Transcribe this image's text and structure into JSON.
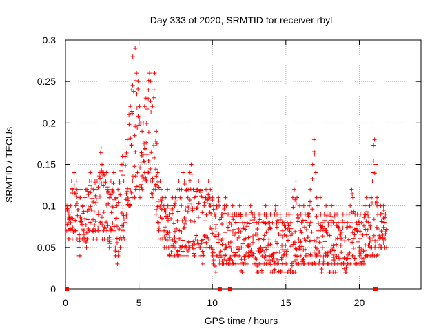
{
  "chart_data": {
    "type": "scatter",
    "title": "Day 333 of 2020, SRMTID for receiver rbyl",
    "xlabel": "GPS time / hours",
    "ylabel": "SRMTID / TECUs",
    "xlim": [
      0,
      24.2
    ],
    "ylim": [
      0,
      0.3
    ],
    "x_ticks": [
      0,
      5,
      10,
      15,
      20
    ],
    "x_tick_labels": [
      "0",
      "5",
      "10",
      "15",
      "20"
    ],
    "y_ticks": [
      0,
      0.05,
      0.1,
      0.15,
      0.2,
      0.25,
      0.3
    ],
    "y_tick_labels": [
      "0",
      "0.05",
      "0.1",
      "0.15",
      "0.2",
      "0.25",
      "0.3"
    ],
    "grid": true,
    "marker": "plus",
    "marker_color": "#ff0000",
    "series": [
      {
        "name": "SRMTID",
        "sample_interval_hours": 0.1,
        "x_start": 0.1,
        "min_values": [
          0.07,
          0.06,
          0.07,
          0.08,
          0.06,
          0.07,
          0.07,
          0.06,
          0.04,
          0.04,
          0.06,
          0.07,
          0.06,
          0.05,
          0.06,
          0.07,
          0.08,
          0.07,
          0.06,
          0.07,
          0.06,
          0.07,
          0.07,
          0.08,
          0.06,
          0.07,
          0.06,
          0.07,
          0.06,
          0.05,
          0.07,
          0.06,
          0.07,
          0.04,
          0.03,
          0.04,
          0.05,
          0.06,
          0.07,
          0.06,
          0.08,
          0.09,
          0.1,
          0.1,
          0.11,
          0.13,
          0.11,
          0.12,
          0.14,
          0.12,
          0.11,
          0.12,
          0.13,
          0.14,
          0.13,
          0.14,
          0.14,
          0.13,
          0.11,
          0.12,
          0.12,
          0.09,
          0.08,
          0.07,
          0.06,
          0.06,
          0.05,
          0.06,
          0.05,
          0.05,
          0.04,
          0.04,
          0.05,
          0.04,
          0.05,
          0.04,
          0.04,
          0.05,
          0.05,
          0.04,
          0.05,
          0.05,
          0.04,
          0.05,
          0.05,
          0.05,
          0.04,
          0.04,
          0.06,
          0.05,
          0.05,
          0.04,
          0.03,
          0.04,
          0.05,
          0.05,
          0.06,
          0.05,
          0.05,
          0.04,
          0.03,
          0.02,
          0.04,
          0.04,
          0.03,
          0.04,
          0.03,
          0.03,
          0.04,
          0.03,
          0.03,
          0.03,
          0.04,
          0.03,
          0.04,
          0.03,
          0.04,
          0.04,
          0.03,
          0.02,
          0.03,
          0.03,
          0.04,
          0.03,
          0.04,
          0.04,
          0.04,
          0.03,
          0.03,
          0.02,
          0.02,
          0.03,
          0.03,
          0.02,
          0.03,
          0.04,
          0.03,
          0.03,
          0.03,
          0.02,
          0.02,
          0.02,
          0.03,
          0.03,
          0.02,
          0.02,
          0.02,
          0.03,
          0.02,
          0.03,
          0.02,
          0.02,
          0.02,
          0.02,
          0.02,
          0.02,
          0.03,
          0.03,
          0.03,
          0.04,
          0.03,
          0.03,
          0.03,
          0.04,
          0.03,
          0.03,
          0.04,
          0.03,
          0.03,
          0.03,
          0.04,
          0.04,
          0.03,
          0.02,
          0.03,
          0.03,
          0.04,
          0.03,
          0.03,
          0.02,
          0.03,
          0.02,
          0.03,
          0.02,
          0.03,
          0.03,
          0.03,
          0.03,
          0.03,
          0.02,
          0.02,
          0.03,
          0.03,
          0.03,
          0.04,
          0.04,
          0.03,
          0.03,
          0.03,
          0.04,
          0.03,
          0.03,
          0.03,
          0.04,
          0.04,
          0.04,
          0.04,
          0.05,
          0.04,
          0.04,
          0.05,
          0.04,
          0.05,
          0.05,
          0.05,
          0.06,
          0.05,
          0.06,
          0.05
        ],
        "max_values": [
          0.1,
          0.09,
          0.1,
          0.13,
          0.12,
          0.14,
          0.13,
          0.12,
          0.11,
          0.11,
          0.12,
          0.1,
          0.11,
          0.12,
          0.12,
          0.13,
          0.14,
          0.13,
          0.12,
          0.13,
          0.12,
          0.13,
          0.14,
          0.17,
          0.15,
          0.14,
          0.13,
          0.14,
          0.12,
          0.11,
          0.13,
          0.12,
          0.14,
          0.11,
          0.1,
          0.12,
          0.13,
          0.15,
          0.16,
          0.13,
          0.16,
          0.18,
          0.21,
          0.22,
          0.24,
          0.28,
          0.29,
          0.26,
          0.25,
          0.22,
          0.2,
          0.19,
          0.2,
          0.22,
          0.23,
          0.24,
          0.26,
          0.25,
          0.22,
          0.24,
          0.26,
          0.19,
          0.14,
          0.13,
          0.12,
          0.11,
          0.1,
          0.11,
          0.12,
          0.1,
          0.09,
          0.1,
          0.11,
          0.1,
          0.11,
          0.12,
          0.13,
          0.12,
          0.12,
          0.14,
          0.13,
          0.12,
          0.11,
          0.12,
          0.14,
          0.15,
          0.12,
          0.11,
          0.12,
          0.12,
          0.13,
          0.12,
          0.11,
          0.1,
          0.11,
          0.12,
          0.13,
          0.11,
          0.12,
          0.11,
          0.1,
          0.09,
          0.1,
          0.11,
          0.1,
          0.09,
          0.09,
          0.1,
          0.11,
          0.1,
          0.09,
          0.08,
          0.09,
          0.1,
          0.09,
          0.09,
          0.08,
          0.09,
          0.1,
          0.09,
          0.08,
          0.08,
          0.09,
          0.08,
          0.09,
          0.1,
          0.09,
          0.08,
          0.09,
          0.08,
          0.08,
          0.09,
          0.09,
          0.08,
          0.09,
          0.1,
          0.09,
          0.08,
          0.08,
          0.09,
          0.08,
          0.09,
          0.1,
          0.09,
          0.08,
          0.09,
          0.08,
          0.07,
          0.08,
          0.09,
          0.08,
          0.09,
          0.08,
          0.09,
          0.11,
          0.12,
          0.13,
          0.11,
          0.1,
          0.09,
          0.08,
          0.1,
          0.09,
          0.08,
          0.09,
          0.1,
          0.12,
          0.15,
          0.18,
          0.14,
          0.11,
          0.1,
          0.11,
          0.09,
          0.08,
          0.09,
          0.1,
          0.09,
          0.08,
          0.09,
          0.1,
          0.08,
          0.09,
          0.08,
          0.09,
          0.08,
          0.07,
          0.08,
          0.09,
          0.08,
          0.09,
          0.08,
          0.09,
          0.1,
          0.12,
          0.11,
          0.09,
          0.08,
          0.09,
          0.08,
          0.09,
          0.08,
          0.09,
          0.1,
          0.11,
          0.09,
          0.1,
          0.11,
          0.14,
          0.18,
          0.15,
          0.11,
          0.1,
          0.09,
          0.1,
          0.09,
          0.1,
          0.09
        ]
      }
    ],
    "near_zero_points_x": [
      0.1,
      10.5,
      11.2,
      21.1
    ]
  }
}
